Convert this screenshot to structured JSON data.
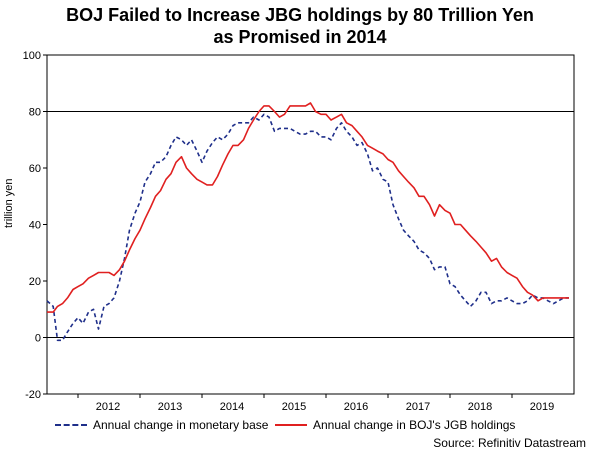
{
  "chart_data": {
    "type": "line",
    "title": [
      "BOJ Failed to Increase JBG holdings by 80 Trillion Yen",
      "as Promised in 2014"
    ],
    "ylabel": "trillion yen",
    "ylim": [
      -20,
      100
    ],
    "yticks": [
      -20,
      0,
      20,
      40,
      60,
      80,
      100
    ],
    "xlim": [
      2011.5,
      2020.0
    ],
    "xticks": [
      {
        "label": "2012",
        "value": 2012.0
      },
      {
        "label": "2013",
        "value": 2013.0
      },
      {
        "label": "2014",
        "value": 2014.0
      },
      {
        "label": "2015",
        "value": 2015.0
      },
      {
        "label": "2016",
        "value": 2016.0
      },
      {
        "label": "2017",
        "value": 2017.0
      },
      {
        "label": "2018",
        "value": 2018.0
      },
      {
        "label": "2019",
        "value": 2019.0
      }
    ],
    "reference_line": {
      "value": 80
    },
    "zero_line": 0,
    "series": [
      {
        "name": "Annual change in monetary base",
        "style": "dashed",
        "color": "#1f2f8a",
        "x": [
          2011.5,
          2011.6,
          2011.67,
          2011.75,
          2011.83,
          2011.92,
          2012.0,
          2012.08,
          2012.17,
          2012.25,
          2012.33,
          2012.42,
          2012.5,
          2012.58,
          2012.67,
          2012.75,
          2012.83,
          2012.92,
          2013.0,
          2013.08,
          2013.17,
          2013.25,
          2013.33,
          2013.42,
          2013.5,
          2013.58,
          2013.67,
          2013.75,
          2013.83,
          2013.92,
          2014.0,
          2014.08,
          2014.17,
          2014.25,
          2014.33,
          2014.42,
          2014.5,
          2014.58,
          2014.67,
          2014.75,
          2014.83,
          2014.92,
          2015.0,
          2015.08,
          2015.17,
          2015.25,
          2015.33,
          2015.42,
          2015.5,
          2015.58,
          2015.67,
          2015.75,
          2015.83,
          2015.92,
          2016.0,
          2016.08,
          2016.17,
          2016.25,
          2016.33,
          2016.42,
          2016.5,
          2016.58,
          2016.67,
          2016.75,
          2016.83,
          2016.92,
          2017.0,
          2017.08,
          2017.17,
          2017.25,
          2017.33,
          2017.42,
          2017.5,
          2017.58,
          2017.67,
          2017.75,
          2017.83,
          2017.92,
          2018.0,
          2018.08,
          2018.17,
          2018.25,
          2018.33,
          2018.42,
          2018.5,
          2018.58,
          2018.67,
          2018.75,
          2018.83,
          2018.92,
          2019.0,
          2019.08,
          2019.17,
          2019.25,
          2019.33,
          2019.42,
          2019.5,
          2019.58,
          2019.67,
          2019.75,
          2019.83,
          2019.92
        ],
        "y": [
          13,
          11,
          -1,
          -1,
          2,
          5,
          7,
          5,
          9,
          10,
          3,
          11,
          12,
          14,
          20,
          28,
          38,
          44,
          48,
          55,
          58,
          62,
          62,
          64,
          68,
          71,
          70,
          68,
          70,
          66,
          62,
          66,
          69,
          71,
          70,
          72,
          75,
          76,
          76,
          76,
          78,
          77,
          79,
          78,
          73,
          74,
          74,
          74,
          73,
          72,
          72,
          73,
          73,
          71,
          71,
          70,
          74,
          76,
          73,
          71,
          68,
          69,
          65,
          59,
          60,
          56,
          55,
          47,
          42,
          38,
          36,
          34,
          31,
          30,
          28,
          24,
          25,
          25,
          19,
          18,
          15,
          13,
          11,
          13,
          16,
          16,
          12,
          13,
          13,
          14,
          13,
          12,
          12,
          13,
          15,
          14,
          14,
          13,
          12,
          13,
          14,
          14
        ]
      },
      {
        "name": "Annual change in BOJ's JGB holdings",
        "style": "solid",
        "color": "#e02020",
        "x": [
          2011.5,
          2011.6,
          2011.67,
          2011.75,
          2011.83,
          2011.92,
          2012.0,
          2012.08,
          2012.17,
          2012.25,
          2012.33,
          2012.42,
          2012.5,
          2012.58,
          2012.67,
          2012.75,
          2012.83,
          2012.92,
          2013.0,
          2013.08,
          2013.17,
          2013.25,
          2013.33,
          2013.42,
          2013.5,
          2013.58,
          2013.67,
          2013.75,
          2013.83,
          2013.92,
          2014.0,
          2014.08,
          2014.17,
          2014.25,
          2014.33,
          2014.42,
          2014.5,
          2014.58,
          2014.67,
          2014.75,
          2014.83,
          2014.92,
          2015.0,
          2015.08,
          2015.17,
          2015.25,
          2015.33,
          2015.42,
          2015.5,
          2015.58,
          2015.67,
          2015.75,
          2015.83,
          2015.92,
          2016.0,
          2016.08,
          2016.17,
          2016.25,
          2016.33,
          2016.42,
          2016.5,
          2016.58,
          2016.67,
          2016.75,
          2016.83,
          2016.92,
          2017.0,
          2017.08,
          2017.17,
          2017.25,
          2017.33,
          2017.42,
          2017.5,
          2017.58,
          2017.67,
          2017.75,
          2017.83,
          2017.92,
          2018.0,
          2018.08,
          2018.17,
          2018.25,
          2018.33,
          2018.42,
          2018.5,
          2018.58,
          2018.67,
          2018.75,
          2018.83,
          2018.92,
          2019.0,
          2019.08,
          2019.17,
          2019.25,
          2019.33,
          2019.42,
          2019.5,
          2019.58,
          2019.67,
          2019.75,
          2019.83,
          2019.92
        ],
        "y": [
          9,
          9,
          11,
          12,
          14,
          17,
          18,
          19,
          21,
          22,
          23,
          23,
          23,
          22,
          24,
          27,
          31,
          35,
          38,
          42,
          46,
          50,
          52,
          56,
          58,
          62,
          64,
          60,
          58,
          56,
          55,
          54,
          54,
          57,
          61,
          65,
          68,
          68,
          70,
          74,
          77,
          80,
          82,
          82,
          80,
          78,
          79,
          82,
          82,
          82,
          82,
          83,
          80,
          79,
          79,
          77,
          78,
          79,
          76,
          75,
          73,
          71,
          68,
          67,
          66,
          65,
          63,
          62,
          59,
          57,
          55,
          53,
          50,
          50,
          47,
          43,
          47,
          45,
          44,
          40,
          40,
          38,
          36,
          34,
          32,
          30,
          27,
          28,
          25,
          23,
          22,
          21,
          18,
          16,
          15,
          13,
          14,
          14,
          14,
          14,
          14,
          14
        ]
      }
    ],
    "legend": [
      {
        "label": "Annual change in monetary base",
        "style": "dashed",
        "color": "#1f2f8a"
      },
      {
        "label": "Annual change in BOJ's JGB holdings",
        "style": "solid",
        "color": "#e02020"
      }
    ],
    "source": "Source: Refinitiv Datastream"
  }
}
